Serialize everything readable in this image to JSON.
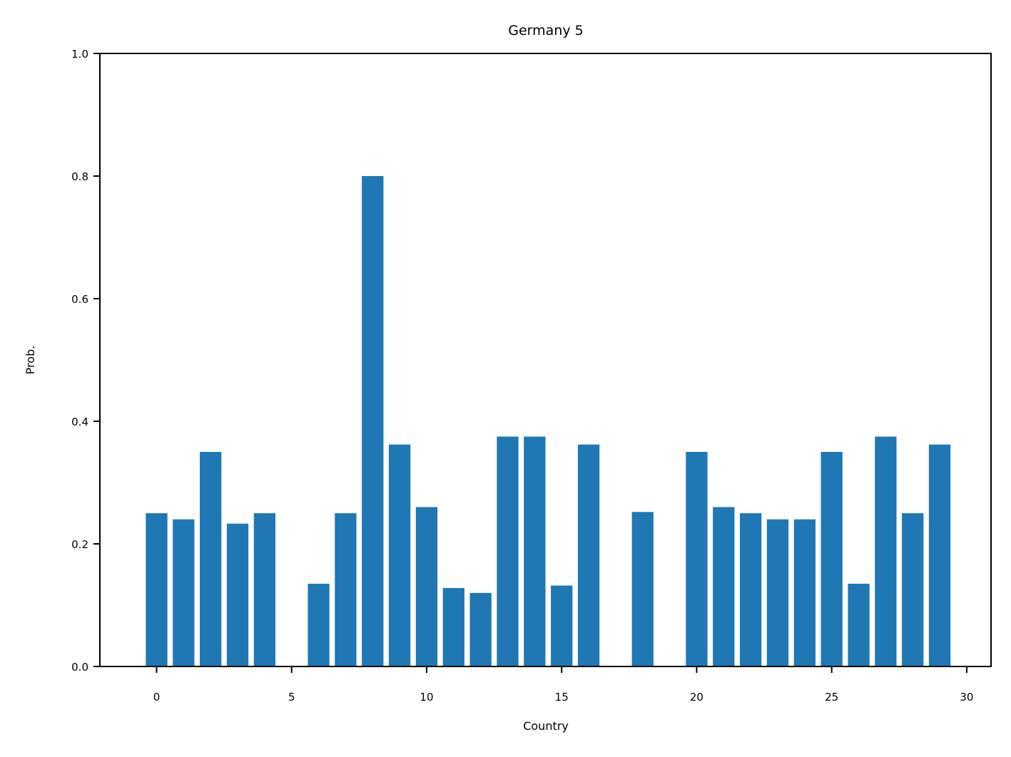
{
  "chart_data": {
    "type": "bar",
    "title": "Germany 5",
    "xlabel": "Country",
    "ylabel": "Prob.",
    "x": [
      0,
      1,
      2,
      3,
      4,
      5,
      6,
      7,
      8,
      9,
      10,
      11,
      12,
      13,
      14,
      15,
      16,
      17,
      18,
      19,
      20,
      21,
      22,
      23,
      24,
      25,
      26,
      27,
      28,
      29
    ],
    "values": [
      0.25,
      0.24,
      0.35,
      0.233,
      0.25,
      0.0,
      0.135,
      0.25,
      0.8,
      0.362,
      0.26,
      0.128,
      0.12,
      0.375,
      0.375,
      0.132,
      0.362,
      0.0,
      0.252,
      0.0,
      0.35,
      0.26,
      0.25,
      0.24,
      0.24,
      0.35,
      0.135,
      0.375,
      0.25,
      0.362
    ],
    "xlim": [
      -2.1,
      30.9
    ],
    "ylim": [
      0,
      1.0
    ],
    "xticks": [
      "0",
      "5",
      "10",
      "15",
      "20",
      "25",
      "30"
    ],
    "yticks": [
      "0.0",
      "0.2",
      "0.4",
      "0.6",
      "0.8",
      "1.0"
    ],
    "bar_color": "#1f77b4",
    "grid": false
  }
}
